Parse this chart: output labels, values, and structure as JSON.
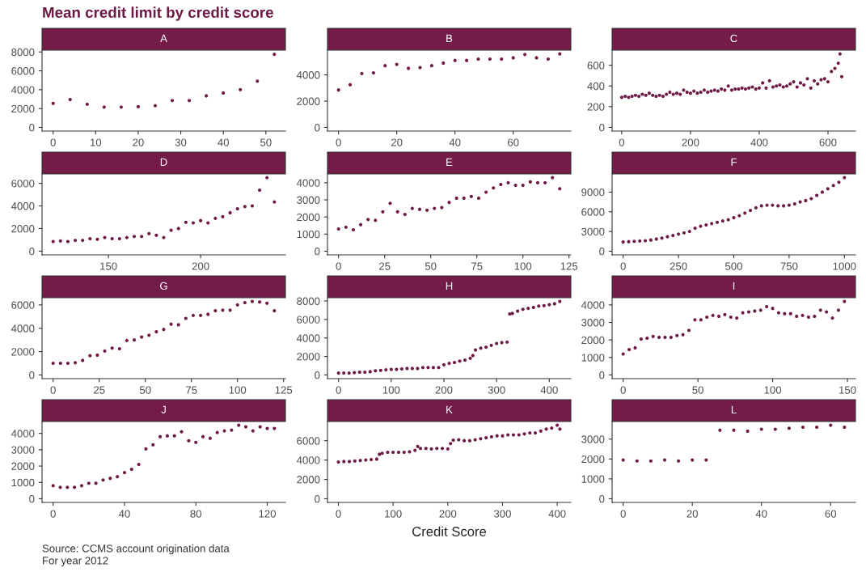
{
  "chart_data": [
    {
      "type": "scatter",
      "title": "Mean credit limit by credit score",
      "subtitle": "A",
      "annotations": [
        "Source: CCMS account origination data",
        "For year 2012"
      ],
      "marker": "circle",
      "grid": false,
      "legend": false,
      "x": [
        0,
        4,
        8,
        12,
        16,
        20,
        24,
        28,
        32,
        36,
        40,
        44,
        48,
        52
      ],
      "values": [
        2550,
        2950,
        2450,
        2150,
        2150,
        2200,
        2300,
        2850,
        2850,
        3350,
        3650,
        4000,
        4900,
        7750
      ],
      "color": "#6d1b46",
      "xlim": [
        -2.6,
        54.6
      ],
      "xticks": [
        0,
        10,
        20,
        30,
        40,
        50
      ],
      "ylim": [
        -390,
        8190
      ],
      "yticks": [
        0,
        2000,
        4000,
        6000,
        8000
      ]
    },
    {
      "type": "scatter",
      "subtitle": "B",
      "marker": "circle",
      "x": [
        0,
        4,
        8,
        12,
        16,
        20,
        24,
        28,
        32,
        36,
        40,
        44,
        48,
        52,
        56,
        60,
        64,
        68,
        72,
        76
      ],
      "values": [
        2850,
        3250,
        4100,
        4150,
        4700,
        4800,
        4500,
        4550,
        4700,
        4900,
        5100,
        5100,
        5200,
        5200,
        5200,
        5300,
        5550,
        5300,
        5200,
        5600
      ],
      "color": "#6d1b46",
      "xlim": [
        -3.8,
        79.8
      ],
      "xticks": [
        0,
        20,
        40,
        60
      ],
      "ylim": [
        -280,
        5880
      ],
      "yticks": [
        0,
        2000,
        4000
      ]
    },
    {
      "type": "scatter",
      "subtitle": "C",
      "marker": "circle",
      "x": [
        0,
        10,
        20,
        30,
        40,
        50,
        60,
        70,
        80,
        90,
        100,
        110,
        120,
        130,
        140,
        150,
        160,
        170,
        180,
        190,
        200,
        210,
        220,
        230,
        240,
        250,
        260,
        270,
        280,
        290,
        300,
        310,
        320,
        330,
        340,
        350,
        360,
        370,
        380,
        390,
        400,
        410,
        420,
        430,
        440,
        450,
        460,
        470,
        480,
        490,
        500,
        510,
        520,
        530,
        540,
        550,
        560,
        570,
        580,
        590,
        600,
        610,
        620,
        630,
        635,
        640
      ],
      "values": [
        290,
        300,
        290,
        300,
        310,
        300,
        320,
        310,
        330,
        310,
        300,
        310,
        300,
        320,
        340,
        320,
        330,
        320,
        360,
        340,
        330,
        350,
        330,
        340,
        360,
        340,
        350,
        360,
        350,
        370,
        360,
        400,
        360,
        370,
        370,
        380,
        370,
        380,
        390,
        370,
        380,
        430,
        380,
        450,
        390,
        400,
        410,
        390,
        400,
        420,
        440,
        390,
        430,
        410,
        470,
        380,
        450,
        420,
        460,
        470,
        440,
        540,
        570,
        620,
        710,
        490
      ],
      "color": "#6d1b46",
      "xlim": [
        -28,
        680
      ],
      "xticks": [
        0,
        200,
        400,
        600
      ],
      "ylim": [
        -36,
        746
      ],
      "yticks": [
        0,
        200,
        400,
        600
      ]
    },
    {
      "type": "scatter",
      "subtitle": "D",
      "marker": "circle",
      "x": [
        120,
        124,
        128,
        132,
        136,
        140,
        144,
        148,
        152,
        156,
        160,
        164,
        168,
        172,
        176,
        180,
        184,
        188,
        192,
        196,
        200,
        204,
        208,
        212,
        216,
        220,
        224,
        228,
        232,
        236,
        240
      ],
      "values": [
        850,
        900,
        850,
        950,
        950,
        1100,
        1050,
        1200,
        1100,
        1100,
        1200,
        1300,
        1300,
        1550,
        1400,
        1200,
        1850,
        2000,
        2550,
        2500,
        2700,
        2500,
        2900,
        3050,
        3400,
        3750,
        3950,
        4000,
        5400,
        6500,
        4350
      ],
      "color": "#6d1b46",
      "xlim": [
        114,
        246
      ],
      "xticks": [
        150,
        200
      ],
      "ylim": [
        -330,
        6830
      ],
      "yticks": [
        0,
        2000,
        4000,
        6000
      ]
    },
    {
      "type": "scatter",
      "subtitle": "E",
      "marker": "circle",
      "x": [
        0,
        4,
        8,
        12,
        16,
        20,
        24,
        28,
        32,
        36,
        40,
        44,
        48,
        52,
        56,
        60,
        64,
        68,
        72,
        76,
        80,
        84,
        88,
        92,
        96,
        100,
        104,
        108,
        112,
        116,
        120
      ],
      "values": [
        1300,
        1400,
        1250,
        1550,
        1850,
        1800,
        2300,
        2800,
        2300,
        2150,
        2500,
        2450,
        2400,
        2500,
        2550,
        2850,
        3100,
        3100,
        3200,
        3100,
        3450,
        3700,
        3900,
        4000,
        3850,
        3850,
        4050,
        4000,
        4000,
        4300,
        3650
      ],
      "color": "#6d1b46",
      "xlim": [
        -6,
        126
      ],
      "xticks": [
        0,
        25,
        50,
        75,
        100,
        125
      ],
      "ylim": [
        -215,
        4515
      ],
      "yticks": [
        0,
        1000,
        2000,
        3000,
        4000
      ]
    },
    {
      "type": "scatter",
      "subtitle": "F",
      "marker": "circle",
      "x": [
        0,
        25,
        50,
        75,
        100,
        125,
        150,
        175,
        200,
        225,
        250,
        275,
        300,
        325,
        350,
        375,
        400,
        425,
        450,
        475,
        500,
        525,
        550,
        575,
        600,
        625,
        650,
        675,
        700,
        725,
        750,
        775,
        800,
        825,
        850,
        875,
        900,
        925,
        950,
        975,
        1000
      ],
      "values": [
        1400,
        1450,
        1500,
        1550,
        1600,
        1700,
        1850,
        2000,
        2200,
        2400,
        2600,
        2800,
        3000,
        3500,
        3800,
        4000,
        4200,
        4400,
        4600,
        4800,
        5100,
        5400,
        5800,
        6200,
        6600,
        6900,
        7000,
        7000,
        6900,
        6900,
        7000,
        7200,
        7500,
        7700,
        8000,
        8500,
        9000,
        9500,
        10000,
        10500,
        11200
      ],
      "color": "#6d1b46",
      "xlim": [
        -50,
        1050
      ],
      "xticks": [
        0,
        250,
        500,
        750,
        1000
      ],
      "ylim": [
        -560,
        11760
      ],
      "yticks": [
        0,
        3000,
        6000,
        9000
      ]
    },
    {
      "type": "scatter",
      "subtitle": "G",
      "marker": "circle",
      "x": [
        0,
        4,
        8,
        12,
        16,
        20,
        24,
        28,
        32,
        36,
        40,
        44,
        48,
        52,
        56,
        60,
        64,
        68,
        72,
        76,
        80,
        84,
        88,
        92,
        96,
        100,
        104,
        108,
        112,
        116,
        120
      ],
      "values": [
        1000,
        1000,
        1000,
        1050,
        1250,
        1650,
        1700,
        2050,
        2300,
        2250,
        2950,
        3000,
        3250,
        3400,
        3700,
        3900,
        4350,
        4300,
        4850,
        5100,
        5100,
        5200,
        5500,
        5550,
        5550,
        6000,
        6200,
        6300,
        6250,
        6150,
        5500
      ],
      "color": "#6d1b46",
      "xlim": [
        -6,
        126
      ],
      "xticks": [
        0,
        25,
        50,
        75,
        100,
        125
      ],
      "ylim": [
        -315,
        6615
      ],
      "yticks": [
        0,
        2000,
        4000,
        6000
      ]
    },
    {
      "type": "scatter",
      "subtitle": "H",
      "marker": "circle",
      "x": [
        0,
        10,
        20,
        30,
        40,
        50,
        60,
        70,
        80,
        90,
        100,
        110,
        120,
        130,
        140,
        150,
        160,
        170,
        180,
        190,
        200,
        210,
        220,
        230,
        240,
        250,
        255,
        260,
        270,
        280,
        290,
        300,
        310,
        320,
        325,
        330,
        340,
        350,
        360,
        370,
        380,
        390,
        400,
        410,
        420
      ],
      "values": [
        200,
        200,
        200,
        250,
        300,
        300,
        350,
        450,
        500,
        550,
        600,
        600,
        650,
        700,
        700,
        700,
        800,
        800,
        800,
        800,
        1100,
        1250,
        1350,
        1500,
        1600,
        1800,
        2100,
        2700,
        2900,
        3000,
        3200,
        3400,
        3500,
        3550,
        6600,
        6650,
        6900,
        7100,
        7200,
        7300,
        7450,
        7500,
        7600,
        7700,
        7950
      ],
      "color": "#6d1b46",
      "xlim": [
        -21,
        441
      ],
      "xticks": [
        0,
        100,
        200,
        300,
        400
      ],
      "ylim": [
        -400,
        8350
      ],
      "yticks": [
        0,
        2000,
        4000,
        6000,
        8000
      ]
    },
    {
      "type": "scatter",
      "subtitle": "I",
      "marker": "circle",
      "x": [
        0,
        4,
        8,
        12,
        16,
        20,
        24,
        28,
        32,
        36,
        40,
        44,
        48,
        52,
        56,
        60,
        64,
        68,
        72,
        76,
        80,
        84,
        88,
        92,
        96,
        100,
        104,
        108,
        112,
        116,
        120,
        124,
        128,
        132,
        136,
        140,
        144,
        148
      ],
      "values": [
        1200,
        1450,
        1550,
        2050,
        2100,
        2200,
        2150,
        2150,
        2150,
        2250,
        2300,
        2550,
        3150,
        3150,
        3300,
        3400,
        3350,
        3450,
        3300,
        3250,
        3550,
        3600,
        3650,
        3700,
        3900,
        3800,
        3550,
        3500,
        3500,
        3350,
        3400,
        3300,
        3350,
        3700,
        3600,
        3250,
        3700,
        4200
      ],
      "color": "#6d1b46",
      "xlim": [
        -7.4,
        155.4
      ],
      "xticks": [
        0,
        50,
        100,
        150
      ],
      "ylim": [
        -210,
        4410
      ],
      "yticks": [
        0,
        1000,
        2000,
        3000,
        4000
      ]
    },
    {
      "type": "scatter",
      "subtitle": "J",
      "marker": "circle",
      "x": [
        0,
        4,
        8,
        12,
        16,
        20,
        24,
        28,
        32,
        36,
        40,
        44,
        48,
        52,
        56,
        60,
        64,
        68,
        72,
        76,
        80,
        84,
        88,
        92,
        96,
        100,
        104,
        108,
        112,
        116,
        120,
        124
      ],
      "values": [
        800,
        700,
        700,
        700,
        800,
        950,
        950,
        1150,
        1250,
        1350,
        1600,
        1800,
        2100,
        3050,
        3300,
        3800,
        3850,
        3850,
        4100,
        3550,
        3450,
        3800,
        3700,
        4050,
        4150,
        4200,
        4500,
        4400,
        4150,
        4400,
        4300,
        4300
      ],
      "color": "#6d1b46",
      "xlim": [
        -6.2,
        130.2
      ],
      "xticks": [
        0,
        40,
        80,
        120
      ],
      "ylim": [
        -225,
        4725
      ],
      "yticks": [
        0,
        1000,
        2000,
        3000,
        4000
      ]
    },
    {
      "type": "scatter",
      "subtitle": "K",
      "xlabel": "Credit Score",
      "marker": "circle",
      "x": [
        0,
        10,
        20,
        30,
        40,
        50,
        60,
        70,
        75,
        80,
        90,
        100,
        110,
        120,
        130,
        140,
        145,
        150,
        160,
        170,
        180,
        190,
        200,
        205,
        210,
        220,
        230,
        240,
        250,
        260,
        270,
        280,
        290,
        300,
        310,
        320,
        330,
        340,
        350,
        360,
        370,
        380,
        390,
        400,
        405
      ],
      "values": [
        3800,
        3850,
        3850,
        3900,
        3950,
        4000,
        4050,
        4100,
        4600,
        4700,
        4800,
        4800,
        4800,
        4800,
        4850,
        5000,
        5400,
        5200,
        5200,
        5150,
        5200,
        5200,
        5150,
        5700,
        6050,
        6100,
        6000,
        6000,
        6100,
        6200,
        6300,
        6400,
        6500,
        6500,
        6600,
        6600,
        6600,
        6700,
        6800,
        6800,
        7000,
        7200,
        7300,
        7600,
        7200
      ],
      "color": "#6d1b46",
      "xlim": [
        -20,
        425
      ],
      "xticks": [
        0,
        100,
        200,
        300,
        400
      ],
      "ylim": [
        -380,
        7980
      ],
      "yticks": [
        0,
        2000,
        4000,
        6000
      ]
    },
    {
      "type": "scatter",
      "subtitle": "L",
      "marker": "circle",
      "x": [
        0,
        4,
        8,
        12,
        16,
        20,
        24,
        28,
        32,
        36,
        40,
        44,
        48,
        52,
        56,
        60,
        64
      ],
      "values": [
        1950,
        1900,
        1900,
        1950,
        1900,
        1950,
        1950,
        3450,
        3450,
        3400,
        3500,
        3500,
        3550,
        3600,
        3600,
        3700,
        3600
      ],
      "color": "#6d1b46",
      "xlim": [
        -3.2,
        67.2
      ],
      "xticks": [
        0,
        20,
        40,
        60
      ],
      "ylim": [
        -185,
        3885
      ],
      "yticks": [
        0,
        1000,
        2000,
        3000
      ]
    }
  ]
}
